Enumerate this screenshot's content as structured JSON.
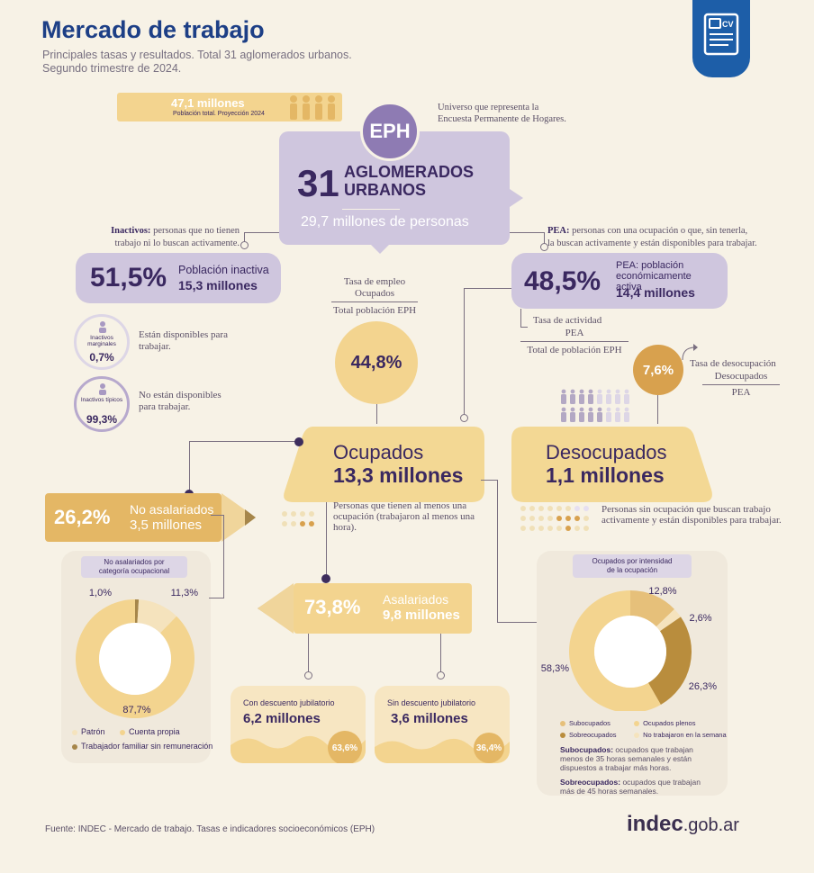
{
  "header": {
    "title": "Mercado de trabajo",
    "subtitle_1": "Principales tasas y resultados. Total 31 aglomerados urbanos.",
    "subtitle_2": "Segundo trimestre de 2024."
  },
  "population": {
    "value": "47,1 millones",
    "caption": "Población total. Proyección 2024"
  },
  "eph": {
    "label": "EPH",
    "note": "Universo que representa la Encuesta Permanente de Hogares.",
    "number": "31",
    "line1": "AGLOMERADOS",
    "line2": "URBANOS",
    "people": "29,7 millones de personas"
  },
  "inactivos": {
    "def_bold": "Inactivos:",
    "def_text": "personas que no tienen",
    "def_text2": "trabajo ni lo buscan activamente.",
    "pct": "51,5%",
    "label": "Población inactiva",
    "value": "15,3 millones",
    "marginales_label": "Inactivos marginales",
    "marginales_pct": "0,7%",
    "marginales_text": "Están disponibles para trabajar.",
    "tipicos_label": "Inactivos típicos",
    "tipicos_pct": "99,3%",
    "tipicos_text": "No están disponibles para trabajar."
  },
  "pea": {
    "def_bold": "PEA:",
    "def_text": "personas con una ocupación o que, sin tenerla,",
    "def_text2": "la buscan activamente y están disponibles para trabajar.",
    "pct": "48,5%",
    "label": "PEA: población económicamente activa",
    "value": "14,4 millones",
    "tasa_actividad_label": "Tasa de actividad",
    "tasa_actividad_num": "PEA",
    "tasa_actividad_den": "Total de población EPH"
  },
  "empleo": {
    "label": "Tasa de empleo",
    "num": "Ocupados",
    "den": "Total población EPH",
    "pct": "44,8%"
  },
  "desocupacion": {
    "pct": "7,6%",
    "label": "Tasa de desocupación",
    "num": "Desocupados",
    "den": "PEA"
  },
  "ocupados": {
    "label": "Ocupados",
    "value": "13,3 millones",
    "note": "Personas que tienen al menos una ocupación (trabajaron al menos una hora)."
  },
  "desocupados": {
    "label": "Desocupados",
    "value": "1,1 millones",
    "note": "Personas sin ocupación que buscan trabajo activamente y están disponibles para trabajar."
  },
  "no_asalariados": {
    "pct": "26,2%",
    "label": "No asalariados",
    "value": "3,5 millones",
    "panel_title_1": "No asalariados por",
    "panel_title_2": "categoría ocupacional",
    "legend": [
      "Patrón",
      "Cuenta propia",
      "Trabajador familiar sin remuneración"
    ]
  },
  "asalariados": {
    "pct": "73,8%",
    "label": "Asalariados",
    "value": "9,8 millones",
    "con_label": "Con descuento jubilatorio",
    "con_value": "6,2 millones",
    "con_pct": "63,6%",
    "sin_label": "Sin descuento jubilatorio",
    "sin_value": "3,6 millones",
    "sin_pct": "36,4%"
  },
  "intensidad": {
    "panel_title_1": "Ocupados por intensidad",
    "panel_title_2": "de la ocupación",
    "legend": [
      "Subocupados",
      "Ocupados plenos",
      "Sobreocupados",
      "No trabajaron en la semana"
    ],
    "sub_bold": "Subocupados:",
    "sub_text": "ocupados que trabajan menos de 35 horas semanales y están dispuestos a trabajar más horas.",
    "sobre_bold": "Sobreocupados:",
    "sobre_text": "ocupados que trabajan más de 45 horas semanales."
  },
  "footer": {
    "source": "Fuente: INDEC - Mercado de trabajo. Tasas e indicadores socioeconómicos (EPH)",
    "brand": "indec",
    "brand_domain": ".gob.ar"
  },
  "chart_data": [
    {
      "type": "pie",
      "title": "No asalariados por categoría ocupacional",
      "categories": [
        "Trabajador familiar sin remuneración",
        "Patrón",
        "Cuenta propia"
      ],
      "values": [
        1.0,
        11.3,
        87.7
      ],
      "labels": [
        "1,0%",
        "11,3%",
        "87,7%"
      ],
      "colors": [
        "#a6864a",
        "#f5e3bd",
        "#f3d48f"
      ]
    },
    {
      "type": "pie",
      "title": "Ocupados por intensidad de la ocupación",
      "categories": [
        "Subocupados",
        "No trabajaron en la semana",
        "Sobreocupados",
        "Ocupados plenos"
      ],
      "values": [
        12.8,
        2.6,
        26.3,
        58.3
      ],
      "labels": [
        "12,8%",
        "2,6%",
        "26,3%",
        "58,3%"
      ],
      "colors": [
        "#e6c07a",
        "#f5e3bd",
        "#b98d3d",
        "#f3d48f"
      ]
    }
  ]
}
